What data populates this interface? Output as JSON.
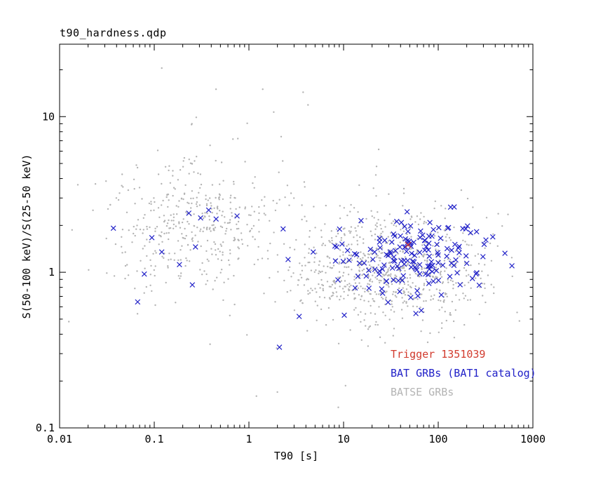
{
  "chart_data": {
    "type": "scatter",
    "title": "t90_hardness.qdp",
    "xlabel": "T90 [s]",
    "ylabel": "S(50-100 keV)/S(25-50 keV)",
    "xscale": "log",
    "yscale": "log",
    "xlim": [
      0.01,
      1000
    ],
    "ylim": [
      0.1,
      29.2
    ],
    "grid": false,
    "x_ticks": [
      {
        "v": 0.01,
        "label": "0.01"
      },
      {
        "v": 0.1,
        "label": "0.1"
      },
      {
        "v": 1,
        "label": "1"
      },
      {
        "v": 10,
        "label": "10"
      },
      {
        "v": 100,
        "label": "100"
      },
      {
        "v": 1000,
        "label": "1000"
      }
    ],
    "y_ticks": [
      {
        "v": 0.1,
        "label": "0.1"
      },
      {
        "v": 1,
        "label": "1"
      },
      {
        "v": 10,
        "label": "10"
      }
    ],
    "legend_position": "bottom-right-inside",
    "series": [
      {
        "name": "BATSE GRBs",
        "marker": "dot",
        "color": "#b4b4b4",
        "size": 1.2,
        "seed": 7,
        "clusters_log10": [
          {
            "n": 760,
            "cx": 1.45,
            "sx": 0.55,
            "cy": 0.03,
            "sy": 0.18
          },
          {
            "n": 400,
            "cx": -0.55,
            "sx": 0.45,
            "cy": 0.31,
            "sy": 0.21
          },
          {
            "n": 80,
            "cx": 0.7,
            "sx": 1.1,
            "cy": 0.28,
            "sy": 0.45
          }
        ],
        "points": [
          [
            0.12,
            20.5
          ],
          [
            1.4,
            15.0
          ],
          [
            0.25,
            9.0
          ],
          [
            1.2,
            0.16
          ],
          [
            2.0,
            0.17
          ]
        ]
      },
      {
        "name": "BAT GRBs (BAT1 catalog)",
        "marker": "x",
        "color": "#2121c8",
        "size": 3.4,
        "seed": 13,
        "clusters_log10": [
          {
            "n": 165,
            "cx": 1.63,
            "sx": 0.42,
            "cy": 0.1,
            "sy": 0.13
          },
          {
            "n": 10,
            "cx": -0.75,
            "sx": 0.35,
            "cy": 0.2,
            "sy": 0.17
          }
        ],
        "points": [
          [
            2.1,
            0.33
          ],
          [
            3.4,
            0.52
          ],
          [
            0.45,
            2.2
          ],
          [
            600,
            1.1
          ],
          [
            0.12,
            1.35
          ],
          [
            0.75,
            2.3
          ],
          [
            2.3,
            1.9
          ]
        ]
      },
      {
        "name": "Trigger 1351039",
        "marker": "x",
        "color": "#d23b2e",
        "size": 4.0,
        "seed": 1,
        "clusters_log10": [],
        "points": [
          [
            48,
            1.5
          ]
        ]
      }
    ]
  },
  "legend": {
    "entries": [
      {
        "label": "Trigger 1351039",
        "color": "#d23b2e"
      },
      {
        "label": "BAT GRBs (BAT1 catalog)",
        "color": "#2121c8"
      },
      {
        "label": "BATSE GRBs",
        "color": "#b4b4b4"
      }
    ]
  }
}
